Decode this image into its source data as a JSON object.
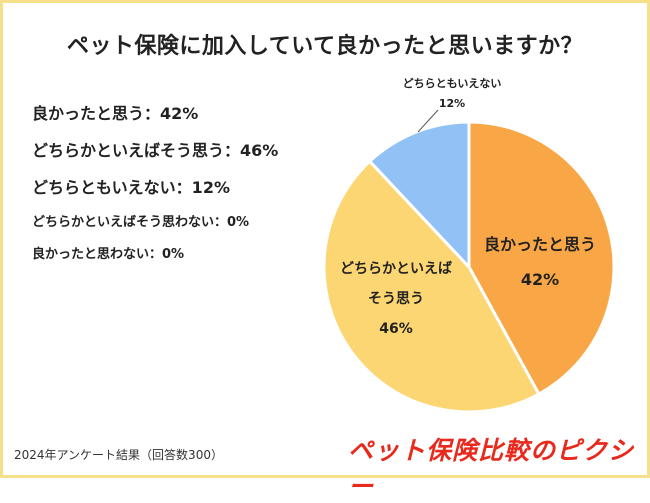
{
  "title": "ペット保険に加入していて良かったと思いますか？",
  "legend_lines": [
    "良かったと思う：42%",
    "どちらかといえばそう思う：46%",
    "どちらともいえない：12%",
    "どちらかといえばそう思わない：0%",
    "良かったと思わない：0%"
  ],
  "footnote": "2024年アンケート結果（回答数300）",
  "brand": "ペット保険比較のピクシー",
  "chart_data": {
    "type": "pie",
    "slices": [
      {
        "label": "良かったと思う",
        "value": 42,
        "value_label": "42%",
        "color": "#f9a646"
      },
      {
        "label": "どちらかといえばそう思う",
        "value": 46,
        "value_label": "46%",
        "color": "#fcd673"
      },
      {
        "label": "どちらともいえない",
        "value": 12,
        "value_label": "12%",
        "color": "#92c2f5"
      },
      {
        "label": "どちらかといえばそう思わない",
        "value": 0,
        "value_label": "0%"
      },
      {
        "label": "良かったと思わない",
        "value": 0,
        "value_label": "0%"
      }
    ],
    "slice_labels": {
      "s1_line1": "良かったと思う",
      "s1_value": "42%",
      "s2_line1": "どちらかといえば",
      "s2_line2": "そう思う",
      "s2_value": "46%",
      "s3_line1": "どちらともいえない",
      "s3_value": "12%"
    }
  }
}
